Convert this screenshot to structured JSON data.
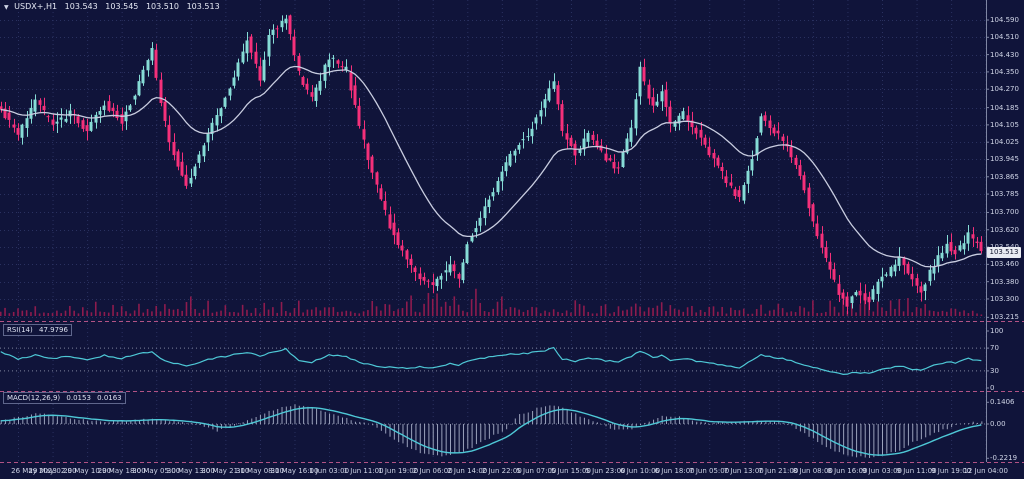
{
  "colors": {
    "bg": "#10143a",
    "grid": "#2a3160",
    "level_line": "#9aa0b8",
    "separator": "#cf5f93",
    "up_candle": "#86dcd6",
    "down_candle": "#f5307a",
    "ma_line": "#c9cde0",
    "volume": "#8e1b4e",
    "indicator_line": "#4ec8d6",
    "histogram": "#a9b1c9",
    "axis_text": "#cfd4e6",
    "axis_divider": "#7f86a3",
    "price_tag_bg": "#e8eaf2",
    "price_tag_text": "#11152e"
  },
  "icons": {
    "symbol_dropdown": "▼"
  },
  "chart_data": [
    {
      "type": "candlestick",
      "symbol_display": "USDX+,H1",
      "open_display": "103.543",
      "high_display": "103.545",
      "low_display": "103.510",
      "close_display": "103.513",
      "bars": 228,
      "bars_per_gridline": 8,
      "ma": {
        "kind": "moving-average",
        "color_key": "ma_line"
      },
      "y_ticks": [
        "104.590",
        "104.510",
        "104.430",
        "104.350",
        "104.270",
        "104.185",
        "104.105",
        "104.025",
        "103.945",
        "103.865",
        "103.785",
        "103.700",
        "103.620",
        "103.540",
        "103.460",
        "103.380",
        "103.300",
        "103.215"
      ],
      "x_ticks": [
        "26 May 2023",
        "29 May 02:00",
        "29 May 10:00",
        "29 May 18:00",
        "30 May 05:00",
        "30 May 13:00",
        "30 May 21:00",
        "31 May 08:00",
        "31 May 16:00",
        "1 Jun 03:00",
        "1 Jun 11:00",
        "1 Jun 19:00",
        "2 Jun 06:00",
        "2 Jun 14:00",
        "2 Jun 22:00",
        "5 Jun 07:00",
        "5 Jun 15:00",
        "5 Jun 23:00",
        "6 Jun 10:00",
        "6 Jun 18:00",
        "7 Jun 05:00",
        "7 Jun 13:00",
        "7 Jun 21:00",
        "8 Jun 08:00",
        "8 Jun 16:00",
        "9 Jun 03:00",
        "9 Jun 11:00",
        "9 Jun 19:00",
        "12 Jun 04:00"
      ],
      "price_path": [
        [
          0,
          104.18
        ],
        [
          4,
          104.06
        ],
        [
          8,
          104.22
        ],
        [
          12,
          104.1
        ],
        [
          16,
          104.16
        ],
        [
          20,
          104.08
        ],
        [
          24,
          104.2
        ],
        [
          28,
          104.12
        ],
        [
          32,
          104.3
        ],
        [
          35,
          104.45
        ],
        [
          37,
          104.2
        ],
        [
          39,
          104.02
        ],
        [
          43,
          103.82
        ],
        [
          48,
          104.06
        ],
        [
          53,
          104.28
        ],
        [
          57,
          104.5
        ],
        [
          60,
          104.32
        ],
        [
          62,
          104.52
        ],
        [
          66,
          104.6
        ],
        [
          69,
          104.34
        ],
        [
          72,
          104.22
        ],
        [
          76,
          104.42
        ],
        [
          80,
          104.36
        ],
        [
          83,
          104.1
        ],
        [
          86,
          103.88
        ],
        [
          90,
          103.64
        ],
        [
          94,
          103.48
        ],
        [
          97,
          103.4
        ],
        [
          100,
          103.36
        ],
        [
          104,
          103.46
        ],
        [
          106,
          103.38
        ],
        [
          108,
          103.56
        ],
        [
          112,
          103.72
        ],
        [
          116,
          103.88
        ],
        [
          119,
          104.0
        ],
        [
          122,
          104.06
        ],
        [
          124,
          104.14
        ],
        [
          126,
          104.22
        ],
        [
          128,
          104.3
        ],
        [
          130,
          104.08
        ],
        [
          133,
          103.97
        ],
        [
          136,
          104.06
        ],
        [
          140,
          103.95
        ],
        [
          143,
          103.9
        ],
        [
          146,
          104.1
        ],
        [
          148,
          104.36
        ],
        [
          151,
          104.18
        ],
        [
          153,
          104.26
        ],
        [
          155,
          104.1
        ],
        [
          158,
          104.16
        ],
        [
          162,
          104.04
        ],
        [
          165,
          103.94
        ],
        [
          168,
          103.85
        ],
        [
          171,
          103.76
        ],
        [
          174,
          103.96
        ],
        [
          176,
          104.15
        ],
        [
          179,
          104.08
        ],
        [
          182,
          104.0
        ],
        [
          185,
          103.88
        ],
        [
          188,
          103.66
        ],
        [
          191,
          103.48
        ],
        [
          194,
          103.33
        ],
        [
          196,
          103.27
        ],
        [
          198,
          103.34
        ],
        [
          201,
          103.29
        ],
        [
          203,
          103.38
        ],
        [
          206,
          103.44
        ],
        [
          208,
          103.49
        ],
        [
          211,
          103.4
        ],
        [
          213,
          103.34
        ],
        [
          216,
          103.46
        ],
        [
          219,
          103.55
        ],
        [
          221,
          103.51
        ],
        [
          224,
          103.6
        ],
        [
          226,
          103.55
        ],
        [
          227,
          103.513
        ]
      ],
      "volume_envelope": [
        [
          0,
          12
        ],
        [
          10,
          22
        ],
        [
          35,
          20
        ],
        [
          43,
          22
        ],
        [
          57,
          18
        ],
        [
          66,
          26
        ],
        [
          83,
          20
        ],
        [
          100,
          30
        ],
        [
          112,
          32
        ],
        [
          126,
          22
        ],
        [
          148,
          18
        ],
        [
          171,
          16
        ],
        [
          185,
          22
        ],
        [
          196,
          26
        ],
        [
          205,
          34
        ],
        [
          216,
          24
        ],
        [
          227,
          10
        ]
      ],
      "render_seed": 42
    },
    {
      "type": "line",
      "name": "RSI(14)",
      "value_display": "47.9796",
      "current": 47.9796,
      "range": [
        0,
        100
      ],
      "levels": [
        70,
        30
      ],
      "y_ticks": [
        "100",
        "70",
        "30",
        "0"
      ],
      "series": [
        [
          0,
          64
        ],
        [
          4,
          50
        ],
        [
          8,
          58
        ],
        [
          12,
          52
        ],
        [
          16,
          55
        ],
        [
          20,
          50
        ],
        [
          24,
          57
        ],
        [
          28,
          52
        ],
        [
          32,
          60
        ],
        [
          35,
          63
        ],
        [
          37,
          52
        ],
        [
          39,
          46
        ],
        [
          43,
          38
        ],
        [
          48,
          50
        ],
        [
          53,
          57
        ],
        [
          57,
          63
        ],
        [
          60,
          55
        ],
        [
          62,
          62
        ],
        [
          66,
          68
        ],
        [
          69,
          49
        ],
        [
          72,
          45
        ],
        [
          76,
          58
        ],
        [
          80,
          55
        ],
        [
          83,
          45
        ],
        [
          86,
          40
        ],
        [
          90,
          36
        ],
        [
          94,
          35
        ],
        [
          97,
          37
        ],
        [
          100,
          35
        ],
        [
          104,
          43
        ],
        [
          106,
          39
        ],
        [
          108,
          48
        ],
        [
          112,
          53
        ],
        [
          116,
          57
        ],
        [
          119,
          60
        ],
        [
          122,
          61
        ],
        [
          124,
          63
        ],
        [
          126,
          66
        ],
        [
          128,
          70
        ],
        [
          130,
          51
        ],
        [
          133,
          47
        ],
        [
          136,
          53
        ],
        [
          140,
          48
        ],
        [
          143,
          46
        ],
        [
          146,
          55
        ],
        [
          148,
          65
        ],
        [
          151,
          53
        ],
        [
          153,
          57
        ],
        [
          155,
          48
        ],
        [
          158,
          52
        ],
        [
          162,
          46
        ],
        [
          165,
          43
        ],
        [
          168,
          39
        ],
        [
          171,
          36
        ],
        [
          174,
          50
        ],
        [
          176,
          58
        ],
        [
          179,
          54
        ],
        [
          182,
          50
        ],
        [
          185,
          43
        ],
        [
          188,
          36
        ],
        [
          191,
          30
        ],
        [
          194,
          26
        ],
        [
          196,
          24
        ],
        [
          198,
          28
        ],
        [
          201,
          25
        ],
        [
          203,
          32
        ],
        [
          206,
          35
        ],
        [
          208,
          39
        ],
        [
          211,
          33
        ],
        [
          213,
          30
        ],
        [
          216,
          40
        ],
        [
          219,
          46
        ],
        [
          221,
          44
        ],
        [
          224,
          52
        ],
        [
          226,
          48
        ],
        [
          227,
          47.98
        ]
      ]
    },
    {
      "type": "macd",
      "name": "MACD(12,26,9)",
      "value_display": "0.0153",
      "signal_display": "0.0163",
      "macd_current": 0.0153,
      "signal_current": 0.0163,
      "range": [
        -0.2219,
        0.1406
      ],
      "y_ticks": [
        "0.1406",
        "0.00",
        "-0.2219"
      ],
      "series": [
        [
          0,
          0.02
        ],
        [
          5,
          0.05
        ],
        [
          9,
          0.07
        ],
        [
          13,
          0.055
        ],
        [
          18,
          0.03
        ],
        [
          24,
          0.015
        ],
        [
          29,
          0.02
        ],
        [
          35,
          0.035
        ],
        [
          40,
          0.02
        ],
        [
          46,
          -0.01
        ],
        [
          50,
          -0.045
        ],
        [
          55,
          0
        ],
        [
          60,
          0.06
        ],
        [
          64,
          0.1
        ],
        [
          68,
          0.125
        ],
        [
          73,
          0.1
        ],
        [
          78,
          0.05
        ],
        [
          82,
          0.02
        ],
        [
          86,
          -0.01
        ],
        [
          91,
          -0.1
        ],
        [
          95,
          -0.16
        ],
        [
          98,
          -0.195
        ],
        [
          102,
          -0.205
        ],
        [
          106,
          -0.19
        ],
        [
          109,
          -0.15
        ],
        [
          113,
          -0.09
        ],
        [
          117,
          -0.03
        ],
        [
          120,
          0.06
        ],
        [
          124,
          0.1
        ],
        [
          128,
          0.12
        ],
        [
          131,
          0.09
        ],
        [
          135,
          0.04
        ],
        [
          139,
          0
        ],
        [
          142,
          -0.04
        ],
        [
          146,
          -0.035
        ],
        [
          150,
          0.02
        ],
        [
          153,
          0.055
        ],
        [
          157,
          0.045
        ],
        [
          160,
          0.02
        ],
        [
          164,
          0
        ],
        [
          168,
          0.01
        ],
        [
          171,
          0.015
        ],
        [
          175,
          0.02
        ],
        [
          179,
          0.025
        ],
        [
          182,
          0
        ],
        [
          186,
          -0.06
        ],
        [
          190,
          -0.13
        ],
        [
          193,
          -0.18
        ],
        [
          197,
          -0.21
        ],
        [
          201,
          -0.215
        ],
        [
          204,
          -0.2
        ],
        [
          208,
          -0.17
        ],
        [
          211,
          -0.12
        ],
        [
          215,
          -0.07
        ],
        [
          219,
          -0.03
        ],
        [
          222,
          0
        ],
        [
          225,
          0.01
        ],
        [
          227,
          0.0153
        ]
      ]
    }
  ]
}
